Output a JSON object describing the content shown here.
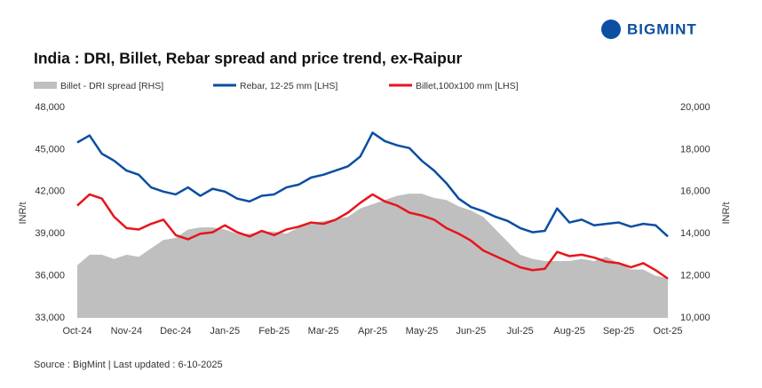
{
  "logo": "BIGMINT",
  "source": "Source : BigMint | Last updated : 6-10-2025",
  "chart_data": {
    "type": "combo",
    "title": "India : DRI, Billet, Rebar spread and price trend, ex-Raipur",
    "ylabel": "INR/t",
    "y2label": "INR/t",
    "categories": [
      "Oct-24",
      null,
      null,
      null,
      "Nov-24",
      null,
      null,
      null,
      "Dec-24",
      null,
      null,
      null,
      "Jan-25",
      null,
      null,
      null,
      "Feb-25",
      null,
      null,
      null,
      "Mar-25",
      null,
      null,
      null,
      "Apr-25",
      null,
      null,
      null,
      "May-25",
      null,
      null,
      null,
      "Jun-25",
      null,
      null,
      null,
      "Jul-25",
      null,
      null,
      null,
      "Aug-25",
      null,
      null,
      null,
      "Sep-25",
      null,
      null,
      null,
      "Oct-25"
    ],
    "series": [
      {
        "name": "Billet - DRI spread  [RHS]",
        "kind": "area",
        "axis": "y2",
        "color": "#bfbfbf",
        "values": [
          12500,
          13000,
          13000,
          12800,
          13000,
          12900,
          13300,
          13700,
          13800,
          14200,
          14300,
          14300,
          14200,
          14000,
          14000,
          14100,
          14100,
          14000,
          14300,
          14500,
          14600,
          14700,
          14800,
          15200,
          15400,
          15600,
          15800,
          15900,
          15900,
          15700,
          15600,
          15300,
          15100,
          14800,
          14200,
          13600,
          13000,
          12800,
          12700,
          12700,
          12700,
          12800,
          12700,
          12900,
          12600,
          12300,
          12300,
          12000,
          11900
        ]
      },
      {
        "name": "Rebar, 12-25 mm [LHS]",
        "kind": "line",
        "color": "#0b4ea2",
        "values": [
          45500,
          46000,
          44700,
          44200,
          43500,
          43200,
          42300,
          42000,
          41800,
          42300,
          41700,
          42200,
          42000,
          41500,
          41300,
          41700,
          41800,
          42300,
          42500,
          43000,
          43200,
          43500,
          43800,
          44500,
          46200,
          45600,
          45300,
          45100,
          44200,
          43500,
          42600,
          41500,
          40900,
          40600,
          40200,
          39900,
          39400,
          39100,
          39200,
          40800,
          39800,
          40000,
          39600,
          39700,
          39800,
          39500,
          39700,
          39600,
          38800
        ]
      },
      {
        "name": "Billet,100x100 mm [LHS]",
        "kind": "line",
        "color": "#e8141b",
        "values": [
          41000,
          41800,
          41500,
          40200,
          39400,
          39300,
          39700,
          40000,
          38900,
          38600,
          39000,
          39100,
          39600,
          39100,
          38800,
          39200,
          38900,
          39300,
          39500,
          39800,
          39700,
          40000,
          40500,
          41200,
          41800,
          41300,
          41000,
          40500,
          40300,
          40000,
          39400,
          39000,
          38500,
          37800,
          37400,
          37000,
          36600,
          36400,
          36500,
          37700,
          37400,
          37500,
          37300,
          37000,
          36900,
          36600,
          36900,
          36400,
          35800
        ]
      }
    ],
    "ylim": [
      33000,
      48000
    ],
    "yticks": [
      {
        "value": 33000,
        "label": "33,000"
      },
      {
        "value": 36000,
        "label": "36,000"
      },
      {
        "value": 39000,
        "label": "39,000"
      },
      {
        "value": 42000,
        "label": "42,000"
      },
      {
        "value": 45000,
        "label": "45,000"
      },
      {
        "value": 48000,
        "label": "48,000"
      }
    ],
    "y2lim": [
      10000,
      20000
    ],
    "y2ticks": [
      {
        "value": 10000,
        "label": "10,000"
      },
      {
        "value": 12000,
        "label": "12,000"
      },
      {
        "value": 14000,
        "label": "14,000"
      },
      {
        "value": 16000,
        "label": "16,000"
      },
      {
        "value": 18000,
        "label": "18,000"
      },
      {
        "value": 20000,
        "label": "20,000"
      }
    ]
  }
}
